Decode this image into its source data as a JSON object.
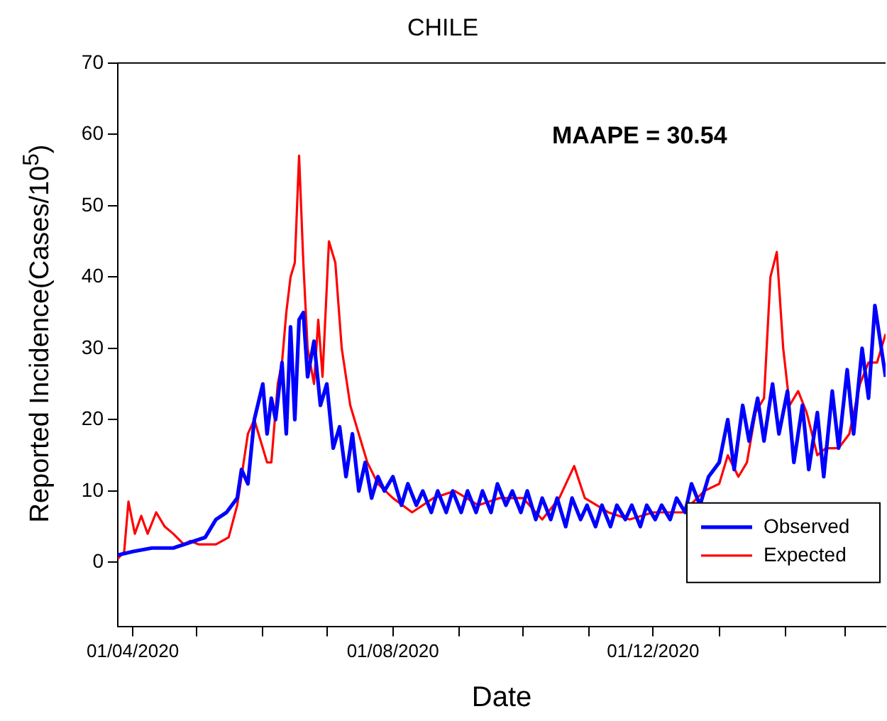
{
  "chart_data": {
    "type": "line",
    "title": "CHILE",
    "xlabel": "Date",
    "ylabel": "Reported Incidence(Cases/10$^{5}$)",
    "annotations": [
      "MAAPE = 30.54"
    ],
    "legend": "bottom right",
    "grid": false,
    "marker": "none",
    "line_style": "solid",
    "xlim": [
      "2020-03-25",
      "2021-03-20"
    ],
    "xticks": [
      {
        "value": "2020-04-01",
        "label": "01/04/2020"
      },
      {
        "value": "2020-05-01",
        "label": null
      },
      {
        "value": "2020-06-01",
        "label": null
      },
      {
        "value": "2020-07-01",
        "label": null
      },
      {
        "value": "2020-08-01",
        "label": "01/08/2020"
      },
      {
        "value": "2020-09-01",
        "label": null
      },
      {
        "value": "2020-10-01",
        "label": null
      },
      {
        "value": "2020-11-01",
        "label": null
      },
      {
        "value": "2020-12-01",
        "label": "01/12/2020"
      },
      {
        "value": "2021-01-01",
        "label": null
      },
      {
        "value": "2021-02-01",
        "label": null
      },
      {
        "value": "2021-03-01",
        "label": null
      }
    ],
    "ylim": [
      -9,
      70
    ],
    "yticks": [
      0,
      10,
      20,
      30,
      40,
      50,
      60,
      70
    ],
    "series": [
      {
        "name": "Observed",
        "color": "#0000ff",
        "x": [
          "2020-03-25",
          "2020-04-01",
          "2020-04-10",
          "2020-04-20",
          "2020-04-30",
          "2020-05-05",
          "2020-05-10",
          "2020-05-15",
          "2020-05-20",
          "2020-05-22",
          "2020-05-25",
          "2020-05-28",
          "2020-06-01",
          "2020-06-03",
          "2020-06-05",
          "2020-06-07",
          "2020-06-10",
          "2020-06-12",
          "2020-06-14",
          "2020-06-16",
          "2020-06-18",
          "2020-06-20",
          "2020-06-22",
          "2020-06-25",
          "2020-06-28",
          "2020-07-01",
          "2020-07-04",
          "2020-07-07",
          "2020-07-10",
          "2020-07-13",
          "2020-07-16",
          "2020-07-19",
          "2020-07-22",
          "2020-07-25",
          "2020-07-28",
          "2020-08-01",
          "2020-08-05",
          "2020-08-08",
          "2020-08-12",
          "2020-08-15",
          "2020-08-19",
          "2020-08-22",
          "2020-08-26",
          "2020-08-29",
          "2020-09-02",
          "2020-09-05",
          "2020-09-09",
          "2020-09-12",
          "2020-09-16",
          "2020-09-19",
          "2020-09-23",
          "2020-09-26",
          "2020-09-30",
          "2020-10-03",
          "2020-10-07",
          "2020-10-10",
          "2020-10-14",
          "2020-10-17",
          "2020-10-21",
          "2020-10-24",
          "2020-10-28",
          "2020-10-31",
          "2020-11-04",
          "2020-11-07",
          "2020-11-11",
          "2020-11-14",
          "2020-11-18",
          "2020-11-21",
          "2020-11-25",
          "2020-11-28",
          "2020-12-02",
          "2020-12-05",
          "2020-12-09",
          "2020-12-12",
          "2020-12-16",
          "2020-12-19",
          "2020-12-23",
          "2020-12-27",
          "2021-01-01",
          "2021-01-05",
          "2021-01-08",
          "2021-01-12",
          "2021-01-15",
          "2021-01-19",
          "2021-01-22",
          "2021-01-26",
          "2021-01-29",
          "2021-02-02",
          "2021-02-05",
          "2021-02-09",
          "2021-02-12",
          "2021-02-16",
          "2021-02-19",
          "2021-02-23",
          "2021-02-26",
          "2021-03-02",
          "2021-03-05",
          "2021-03-09",
          "2021-03-12",
          "2021-03-15",
          "2021-03-18",
          "2021-03-20"
        ],
        "values": [
          1,
          1.5,
          2,
          2,
          3,
          3.5,
          6,
          7,
          9,
          13,
          11,
          20,
          25,
          18,
          23,
          20,
          28,
          18,
          33,
          20,
          34,
          35,
          26,
          31,
          22,
          25,
          16,
          19,
          12,
          18,
          10,
          14,
          9,
          12,
          10,
          12,
          8,
          11,
          8,
          10,
          7,
          10,
          7,
          10,
          7,
          10,
          7,
          10,
          7,
          11,
          8,
          10,
          7,
          10,
          6,
          9,
          6,
          9,
          5,
          9,
          6,
          8,
          5,
          8,
          5,
          8,
          6,
          8,
          5,
          8,
          6,
          8,
          6,
          9,
          7,
          11,
          8,
          12,
          14,
          20,
          13,
          22,
          17,
          23,
          17,
          25,
          18,
          24,
          14,
          22,
          13,
          21,
          12,
          24,
          16,
          27,
          18,
          30,
          23,
          36,
          30,
          26
        ]
      },
      {
        "name": "Expected",
        "color": "#ff0000",
        "x": [
          "2020-03-25",
          "2020-03-28",
          "2020-03-30",
          "2020-04-02",
          "2020-04-05",
          "2020-04-08",
          "2020-04-12",
          "2020-04-16",
          "2020-04-20",
          "2020-04-25",
          "2020-04-28",
          "2020-05-02",
          "2020-05-10",
          "2020-05-16",
          "2020-05-20",
          "2020-05-25",
          "2020-05-28",
          "2020-05-31",
          "2020-06-03",
          "2020-06-05",
          "2020-06-08",
          "2020-06-10",
          "2020-06-12",
          "2020-06-14",
          "2020-06-16",
          "2020-06-18",
          "2020-06-20",
          "2020-06-22",
          "2020-06-25",
          "2020-06-27",
          "2020-06-29",
          "2020-07-02",
          "2020-07-05",
          "2020-07-08",
          "2020-07-12",
          "2020-07-16",
          "2020-07-20",
          "2020-07-25",
          "2020-08-01",
          "2020-08-10",
          "2020-08-20",
          "2020-08-30",
          "2020-09-10",
          "2020-09-20",
          "2020-10-01",
          "2020-10-10",
          "2020-10-18",
          "2020-10-25",
          "2020-10-30",
          "2020-11-10",
          "2020-11-20",
          "2020-12-01",
          "2020-12-15",
          "2020-12-25",
          "2021-01-01",
          "2021-01-05",
          "2021-01-10",
          "2021-01-14",
          "2021-01-18",
          "2021-01-22",
          "2021-01-25",
          "2021-01-28",
          "2021-01-31",
          "2021-02-03",
          "2021-02-07",
          "2021-02-11",
          "2021-02-16",
          "2021-02-20",
          "2021-02-26",
          "2021-03-03",
          "2021-03-08",
          "2021-03-12",
          "2021-03-16",
          "2021-03-20"
        ],
        "values": [
          0.5,
          1.5,
          8.5,
          4,
          6.5,
          4,
          7,
          5,
          4,
          2.5,
          3,
          2.5,
          2.5,
          3.5,
          8,
          18,
          20,
          17,
          14,
          14,
          25,
          28,
          35,
          40,
          42,
          57,
          42,
          30,
          25,
          34,
          26,
          45,
          42,
          30,
          22,
          18,
          14,
          11,
          9,
          7,
          9,
          10,
          8,
          9,
          9,
          6,
          9,
          13.5,
          9,
          7,
          6,
          7,
          7,
          10,
          11,
          15,
          12,
          14,
          21,
          23,
          40,
          43.5,
          30,
          22,
          24,
          21,
          15,
          16,
          16,
          18,
          25,
          28,
          28,
          32
        ]
      }
    ]
  }
}
